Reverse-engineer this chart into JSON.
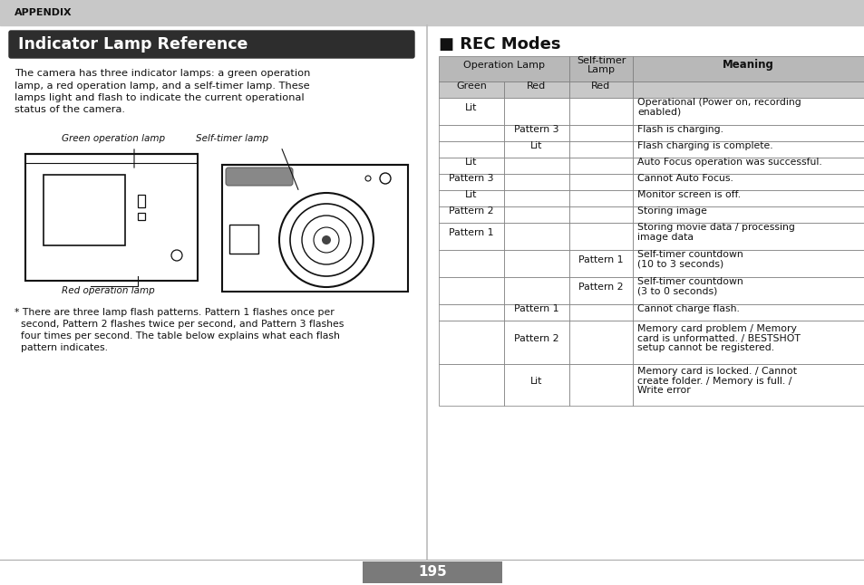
{
  "page_bg": "#ffffff",
  "header_bg": "#c8c8c8",
  "header_text": "APPENDIX",
  "title_bg": "#2d2d2d",
  "title_text": "Indicator Lamp Reference",
  "title_text_color": "#ffffff",
  "section_title": "■ REC Modes",
  "body_text": "The camera has three indicator lamps: a green operation\nlamp, a red operation lamp, and a self-timer lamp. These\nlamps light and flash to indicate the current operational\nstatus of the camera.",
  "footnote": "* There are three lamp flash patterns. Pattern 1 flashes once per\n  second, Pattern 2 flashes twice per second, and Pattern 3 flashes\n  four times per second. The table below explains what each flash\n  pattern indicates.",
  "green_lamp_label": "Green operation lamp",
  "red_lamp_label": "Red operation lamp",
  "self_timer_label": "Self-timer lamp",
  "table_header_bg": "#b8b8b8",
  "table_subheader_bg": "#c8c8c8",
  "table_row_bg": "#ffffff",
  "page_number": "195",
  "page_num_bg": "#7a7a7a",
  "table_data": [
    {
      "green": "Lit",
      "red": "",
      "self_timer": "",
      "meaning": "Operational (Power on, recording\nenabled)"
    },
    {
      "green": "",
      "red": "Pattern 3",
      "self_timer": "",
      "meaning": "Flash is charging."
    },
    {
      "green": "",
      "red": "Lit",
      "self_timer": "",
      "meaning": "Flash charging is complete."
    },
    {
      "green": "Lit",
      "red": "",
      "self_timer": "",
      "meaning": "Auto Focus operation was successful."
    },
    {
      "green": "Pattern 3",
      "red": "",
      "self_timer": "",
      "meaning": "Cannot Auto Focus."
    },
    {
      "green": "Lit",
      "red": "",
      "self_timer": "",
      "meaning": "Monitor screen is off."
    },
    {
      "green": "Pattern 2",
      "red": "",
      "self_timer": "",
      "meaning": "Storing image"
    },
    {
      "green": "Pattern 1",
      "red": "",
      "self_timer": "",
      "meaning": "Storing movie data / processing\nimage data"
    },
    {
      "green": "",
      "red": "",
      "self_timer": "Pattern 1",
      "meaning": "Self-timer countdown\n(10 to 3 seconds)"
    },
    {
      "green": "",
      "red": "",
      "self_timer": "Pattern 2",
      "meaning": "Self-timer countdown\n(3 to 0 seconds)"
    },
    {
      "green": "",
      "red": "Pattern 1",
      "self_timer": "",
      "meaning": "Cannot charge flash."
    },
    {
      "green": "",
      "red": "Pattern 2",
      "self_timer": "",
      "meaning": "Memory card problem / Memory\ncard is unformatted. / BESTSHOT\nsetup cannot be registered."
    },
    {
      "green": "",
      "red": "Lit",
      "self_timer": "",
      "meaning": "Memory card is locked. / Cannot\ncreate folder. / Memory is full. /\nWrite error"
    }
  ]
}
